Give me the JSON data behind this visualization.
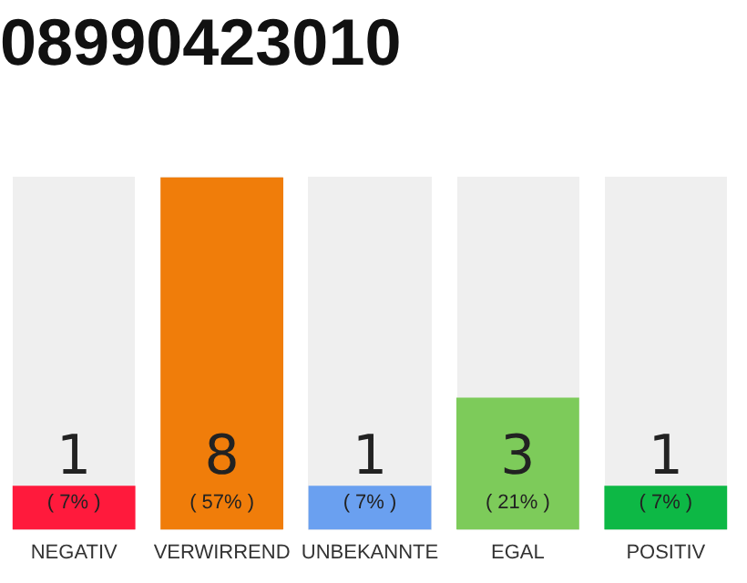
{
  "chart_data": {
    "type": "bar",
    "title": "08990423010",
    "categories": [
      "NEGATIV",
      "VERWIRREND",
      "UNBEKANNTE",
      "EGAL",
      "POSITIV"
    ],
    "values": [
      1,
      8,
      1,
      3,
      1
    ],
    "colors": [
      "#ff1a3c",
      "#f07d0a",
      "#6aa0f0",
      "#7dcb5a",
      "#0db845"
    ],
    "ylim": [
      0,
      8
    ],
    "tick_labels": "x",
    "grid": false,
    "legend": false,
    "data_labels": true,
    "annotations": [
      "( 7% )",
      "( 57% )",
      "( 7% )",
      "( 21% )",
      "( 7% )"
    ]
  }
}
